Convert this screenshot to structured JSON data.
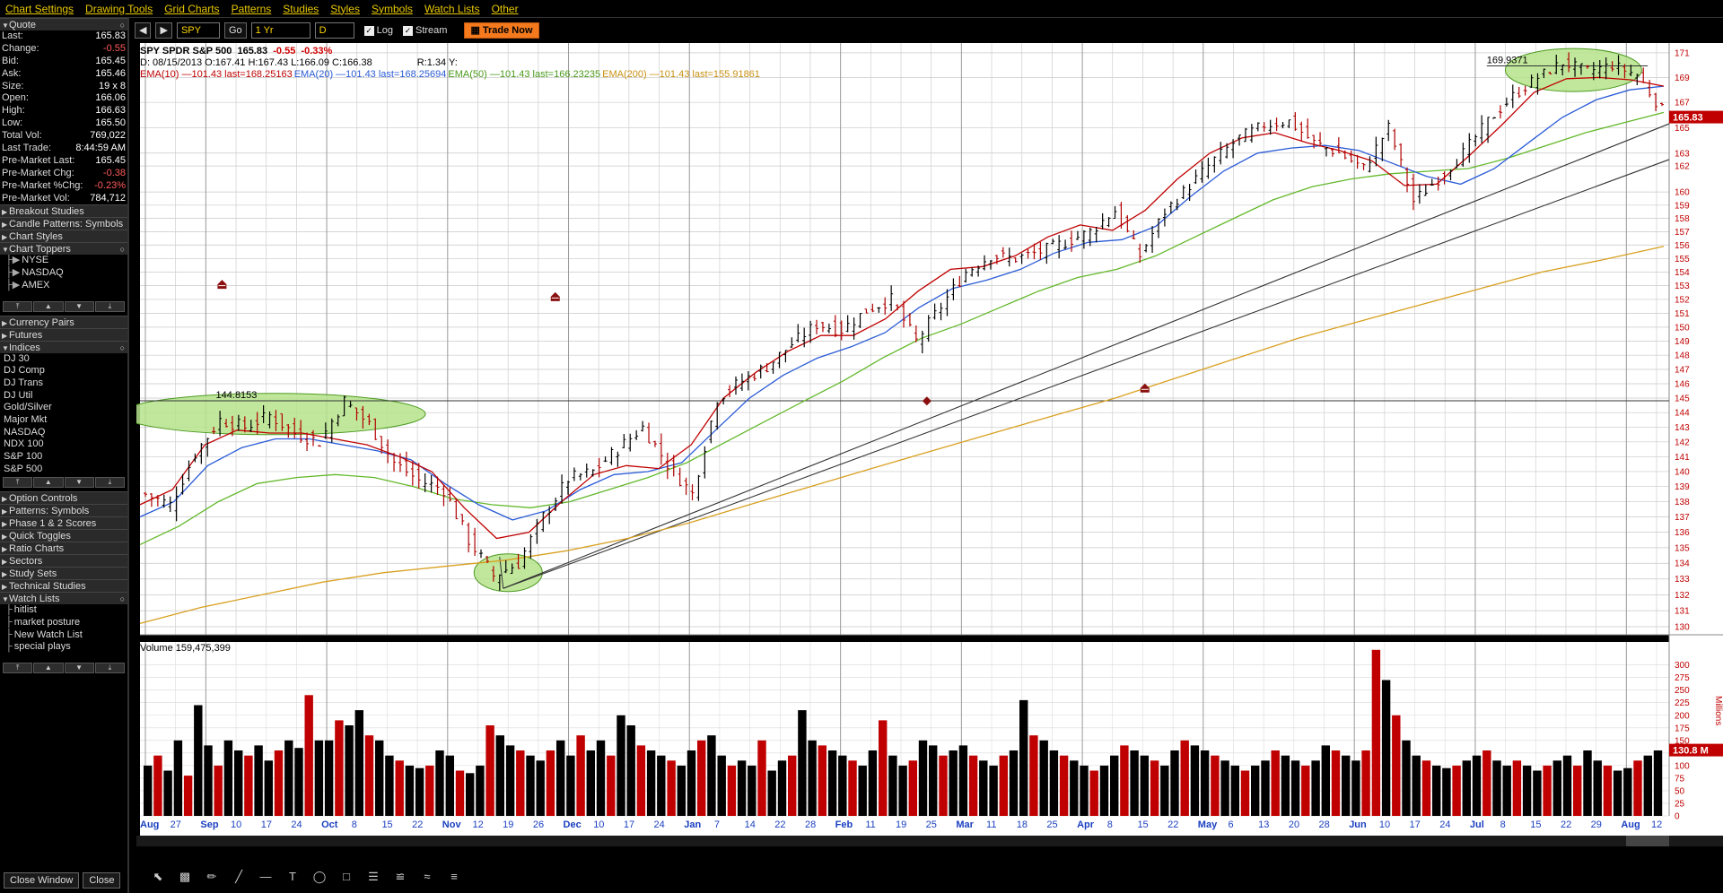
{
  "menu": [
    "Chart Settings",
    "Drawing Tools",
    "Grid Charts",
    "Patterns",
    "Studies",
    "Styles",
    "Symbols",
    "Watch Lists",
    "Other"
  ],
  "sidebar": {
    "quote_header": "Quote",
    "quote": [
      {
        "label": "Last:",
        "value": "165.83",
        "neg": false
      },
      {
        "label": "Change:",
        "value": "-0.55",
        "neg": true
      },
      {
        "label": "Bid:",
        "value": "165.45",
        "neg": false
      },
      {
        "label": "Ask:",
        "value": "165.46",
        "neg": false
      },
      {
        "label": "Size:",
        "value": "19 x 8",
        "neg": false
      },
      {
        "label": "Open:",
        "value": "166.06",
        "neg": false
      },
      {
        "label": "High:",
        "value": "166.63",
        "neg": false
      },
      {
        "label": "Low:",
        "value": "165.50",
        "neg": false
      },
      {
        "label": "Total Vol:",
        "value": "769,022",
        "neg": false
      },
      {
        "label": "Last Trade:",
        "value": "8:44:59 AM",
        "neg": false
      },
      {
        "label": "Pre-Market Last:",
        "value": "165.45",
        "neg": false
      },
      {
        "label": "Pre-Market Chg:",
        "value": "-0.38",
        "neg": true
      },
      {
        "label": "Pre-Market %Chg:",
        "value": "-0.23%",
        "neg": true
      },
      {
        "label": "Pre-Market Vol:",
        "value": "784,712",
        "neg": false
      }
    ],
    "sections_a": [
      "Breakout Studies",
      "Candle Patterns: Symbols",
      "Chart Styles"
    ],
    "chart_toppers": "Chart Toppers",
    "toppers": [
      "NYSE",
      "NASDAQ",
      "AMEX"
    ],
    "sections_b": [
      "Currency Pairs",
      "Futures"
    ],
    "indices_header": "Indices",
    "indices": [
      "DJ 30",
      "DJ Comp",
      "DJ Trans",
      "DJ Util",
      "Gold/Silver",
      "Major Mkt",
      "NASDAQ",
      "NDX 100",
      "S&P 100",
      "S&P 500"
    ],
    "sections_c": [
      "Option Controls",
      "Patterns: Symbols",
      "Phase 1 & 2 Scores",
      "Quick Toggles",
      "Ratio Charts",
      "Sectors",
      "Study Sets",
      "Technical Studies"
    ],
    "watch_header": "Watch Lists",
    "watch": [
      "hitlist",
      "market posture",
      "New Watch List",
      "special plays"
    ],
    "close_window": "Close Window",
    "close": "Close"
  },
  "toolbar": {
    "symbol": "SPY",
    "go": "Go",
    "period": "1 Yr",
    "interval": "D",
    "log_label": "Log",
    "stream_label": "Stream",
    "trade_now": "Trade Now"
  },
  "legend": {
    "title": "SPY SPDR S&P 500",
    "last": "165.83",
    "chg": "-0.55",
    "pct": "-0.33%",
    "ohlc": "D: 08/15/2013 O:167.41 H:167.43 L:166.09 C:166.38",
    "r": "R:1.34 Y:",
    "ema10": "EMA(10) —101.43 last=168.25163",
    "ema20": "EMA(20) —101.43 last=168.25694",
    "ema50": "EMA(50) —101.43 last=166.23235",
    "ema200": "EMA(200) —101.43 last=155.91861"
  },
  "colors": {
    "ema10": "#c00000",
    "ema20": "#2a5bd7",
    "ema50": "#63b82a",
    "ema200": "#d8a020",
    "up": "#000000",
    "down": "#c00000"
  },
  "annotations": {
    "level_high": "144.8153",
    "level_top": "169.9371",
    "price_box": "165.83",
    "vol_box": "130.8 M",
    "vol_unit": "Millions"
  },
  "volume_label": "Volume 159,475,399",
  "chart_data": {
    "type": "bar",
    "y_axis_price": [
      "171",
      "169",
      "167",
      "165",
      "163",
      "162",
      "160",
      "159",
      "158",
      "157",
      "156",
      "155",
      "154",
      "153",
      "152",
      "151",
      "150",
      "149",
      "148",
      "147",
      "146",
      "145",
      "144",
      "143",
      "142",
      "141",
      "140",
      "139",
      "138",
      "137",
      "136",
      "135",
      "134",
      "133",
      "132",
      "131",
      "130"
    ],
    "y_axis_volume": [
      "300",
      "275",
      "250",
      "225",
      "200",
      "175",
      "150",
      "125",
      "100",
      "75",
      "50",
      "25",
      "0"
    ],
    "x_labels": [
      {
        "t": "Aug",
        "m": true
      },
      {
        "t": "27",
        "m": false
      },
      {
        "t": "Sep",
        "m": true
      },
      {
        "t": "10",
        "m": false
      },
      {
        "t": "17",
        "m": false
      },
      {
        "t": "24",
        "m": false
      },
      {
        "t": "Oct",
        "m": true
      },
      {
        "t": "8",
        "m": false
      },
      {
        "t": "15",
        "m": false
      },
      {
        "t": "22",
        "m": false
      },
      {
        "t": "Nov",
        "m": true
      },
      {
        "t": "12",
        "m": false
      },
      {
        "t": "19",
        "m": false
      },
      {
        "t": "26",
        "m": false
      },
      {
        "t": "Dec",
        "m": true
      },
      {
        "t": "10",
        "m": false
      },
      {
        "t": "17",
        "m": false
      },
      {
        "t": "24",
        "m": false
      },
      {
        "t": "Jan",
        "m": true
      },
      {
        "t": "7",
        "m": false
      },
      {
        "t": "14",
        "m": false
      },
      {
        "t": "22",
        "m": false
      },
      {
        "t": "28",
        "m": false
      },
      {
        "t": "Feb",
        "m": true
      },
      {
        "t": "11",
        "m": false
      },
      {
        "t": "19",
        "m": false
      },
      {
        "t": "25",
        "m": false
      },
      {
        "t": "Mar",
        "m": true
      },
      {
        "t": "11",
        "m": false
      },
      {
        "t": "18",
        "m": false
      },
      {
        "t": "25",
        "m": false
      },
      {
        "t": "Apr",
        "m": true
      },
      {
        "t": "8",
        "m": false
      },
      {
        "t": "15",
        "m": false
      },
      {
        "t": "22",
        "m": false
      },
      {
        "t": "May",
        "m": true
      },
      {
        "t": "6",
        "m": false
      },
      {
        "t": "13",
        "m": false
      },
      {
        "t": "20",
        "m": false
      },
      {
        "t": "28",
        "m": false
      },
      {
        "t": "Jun",
        "m": true
      },
      {
        "t": "10",
        "m": false
      },
      {
        "t": "17",
        "m": false
      },
      {
        "t": "24",
        "m": false
      },
      {
        "t": "Jul",
        "m": true
      },
      {
        "t": "8",
        "m": false
      },
      {
        "t": "15",
        "m": false
      },
      {
        "t": "22",
        "m": false
      },
      {
        "t": "29",
        "m": false
      },
      {
        "t": "Aug",
        "m": true
      },
      {
        "t": "12",
        "m": false
      }
    ],
    "price_path": [
      138.5,
      137.8,
      141.2,
      143.5,
      143.0,
      143.8,
      142.6,
      142.0,
      144.8,
      143.2,
      140.6,
      139.4,
      138.8,
      135.5,
      133.2,
      134.0,
      137.0,
      139.5,
      140.0,
      141.5,
      143.0,
      140.5,
      138.5,
      145.0,
      146.2,
      147.2,
      148.8,
      150.2,
      149.8,
      151.2,
      152.0,
      149.0,
      151.5,
      154.0,
      155.2,
      155.0,
      155.5,
      156.2,
      157.0,
      158.6,
      155.2,
      158.5,
      160.5,
      162.5,
      164.2,
      165.2,
      165.5,
      163.8,
      163.0,
      161.8,
      165.0,
      159.3,
      161.0,
      163.0,
      165.5,
      167.5,
      169.0,
      170.2,
      169.5,
      170.0,
      169.2,
      166.4
    ],
    "ema10": [
      137.8,
      138.8,
      141.8,
      142.8,
      142.6,
      142.6,
      142.2,
      141.8,
      141.0,
      140.0,
      137.6,
      135.6,
      136.0,
      138.0,
      139.8,
      140.4,
      140.2,
      141.8,
      145.0,
      146.8,
      148.3,
      149.4,
      149.4,
      150.6,
      152.6,
      154.2,
      154.4,
      155.2,
      156.6,
      157.5,
      157.1,
      158.6,
      161.0,
      163.0,
      164.2,
      164.6,
      163.8,
      163.2,
      162.4,
      160.5,
      160.6,
      162.8,
      165.2,
      167.8,
      168.9,
      169.0,
      168.8,
      168.3
    ],
    "ema20": [
      137.0,
      138.0,
      140.4,
      141.6,
      142.2,
      142.2,
      141.8,
      141.4,
      140.8,
      139.2,
      137.8,
      136.8,
      137.4,
      138.8,
      139.8,
      140.0,
      140.6,
      142.8,
      145.0,
      146.6,
      147.8,
      148.6,
      149.6,
      151.4,
      152.8,
      153.4,
      154.2,
      155.4,
      156.2,
      156.4,
      157.4,
      159.6,
      161.6,
      163.0,
      163.4,
      163.6,
      163.2,
      162.2,
      161.2,
      160.6,
      161.8,
      163.8,
      165.8,
      167.2,
      168.0,
      168.3
    ],
    "ema50": [
      135.2,
      136.4,
      138.0,
      139.2,
      139.6,
      139.8,
      139.6,
      139.0,
      138.2,
      137.8,
      137.6,
      138.0,
      138.8,
      139.6,
      140.6,
      142.0,
      143.4,
      144.8,
      146.2,
      147.8,
      149.2,
      150.2,
      151.4,
      152.6,
      153.6,
      154.2,
      155.2,
      156.6,
      158.0,
      159.4,
      160.4,
      161.0,
      161.4,
      161.6,
      161.8,
      162.6,
      163.6,
      164.6,
      165.4,
      166.2
    ],
    "ema200": [
      130.2,
      131.2,
      132.0,
      132.8,
      133.4,
      133.8,
      134.2,
      134.8,
      135.6,
      136.6,
      137.8,
      139.0,
      140.2,
      141.4,
      142.6,
      143.8,
      145.0,
      146.4,
      147.8,
      149.2,
      150.4,
      151.6,
      152.8,
      154.0,
      154.9,
      155.9
    ],
    "volume_m": [
      100,
      120,
      90,
      150,
      80,
      220,
      140,
      100,
      150,
      130,
      120,
      140,
      110,
      130,
      150,
      135,
      240,
      150,
      150,
      190,
      180,
      210,
      160,
      150,
      120,
      110,
      100,
      95,
      100,
      130,
      120,
      90,
      85,
      100,
      180,
      160,
      140,
      130,
      120,
      110,
      130,
      150,
      120,
      160,
      130,
      150,
      120,
      200,
      180,
      140,
      130,
      120,
      110,
      100,
      130,
      150,
      160,
      120,
      100,
      110,
      100,
      150,
      90,
      110,
      120,
      210,
      150,
      140,
      130,
      120,
      110,
      100,
      130,
      190,
      120,
      100,
      110,
      150,
      140,
      120,
      130,
      140,
      120,
      110,
      100,
      120,
      130,
      230,
      160,
      150,
      130,
      120,
      110,
      100,
      90,
      100,
      120,
      140,
      130,
      120,
      110,
      100,
      130,
      150,
      140,
      130,
      120,
      110,
      100,
      90,
      100,
      110,
      130,
      120,
      110,
      100,
      110,
      140,
      130,
      120,
      110,
      130,
      330,
      270,
      200,
      150,
      120,
      110,
      100,
      95,
      100,
      110,
      120,
      130,
      110,
      100,
      110,
      100,
      90,
      100,
      110,
      120,
      100,
      130,
      110,
      100,
      90,
      95,
      110,
      120,
      130
    ]
  }
}
